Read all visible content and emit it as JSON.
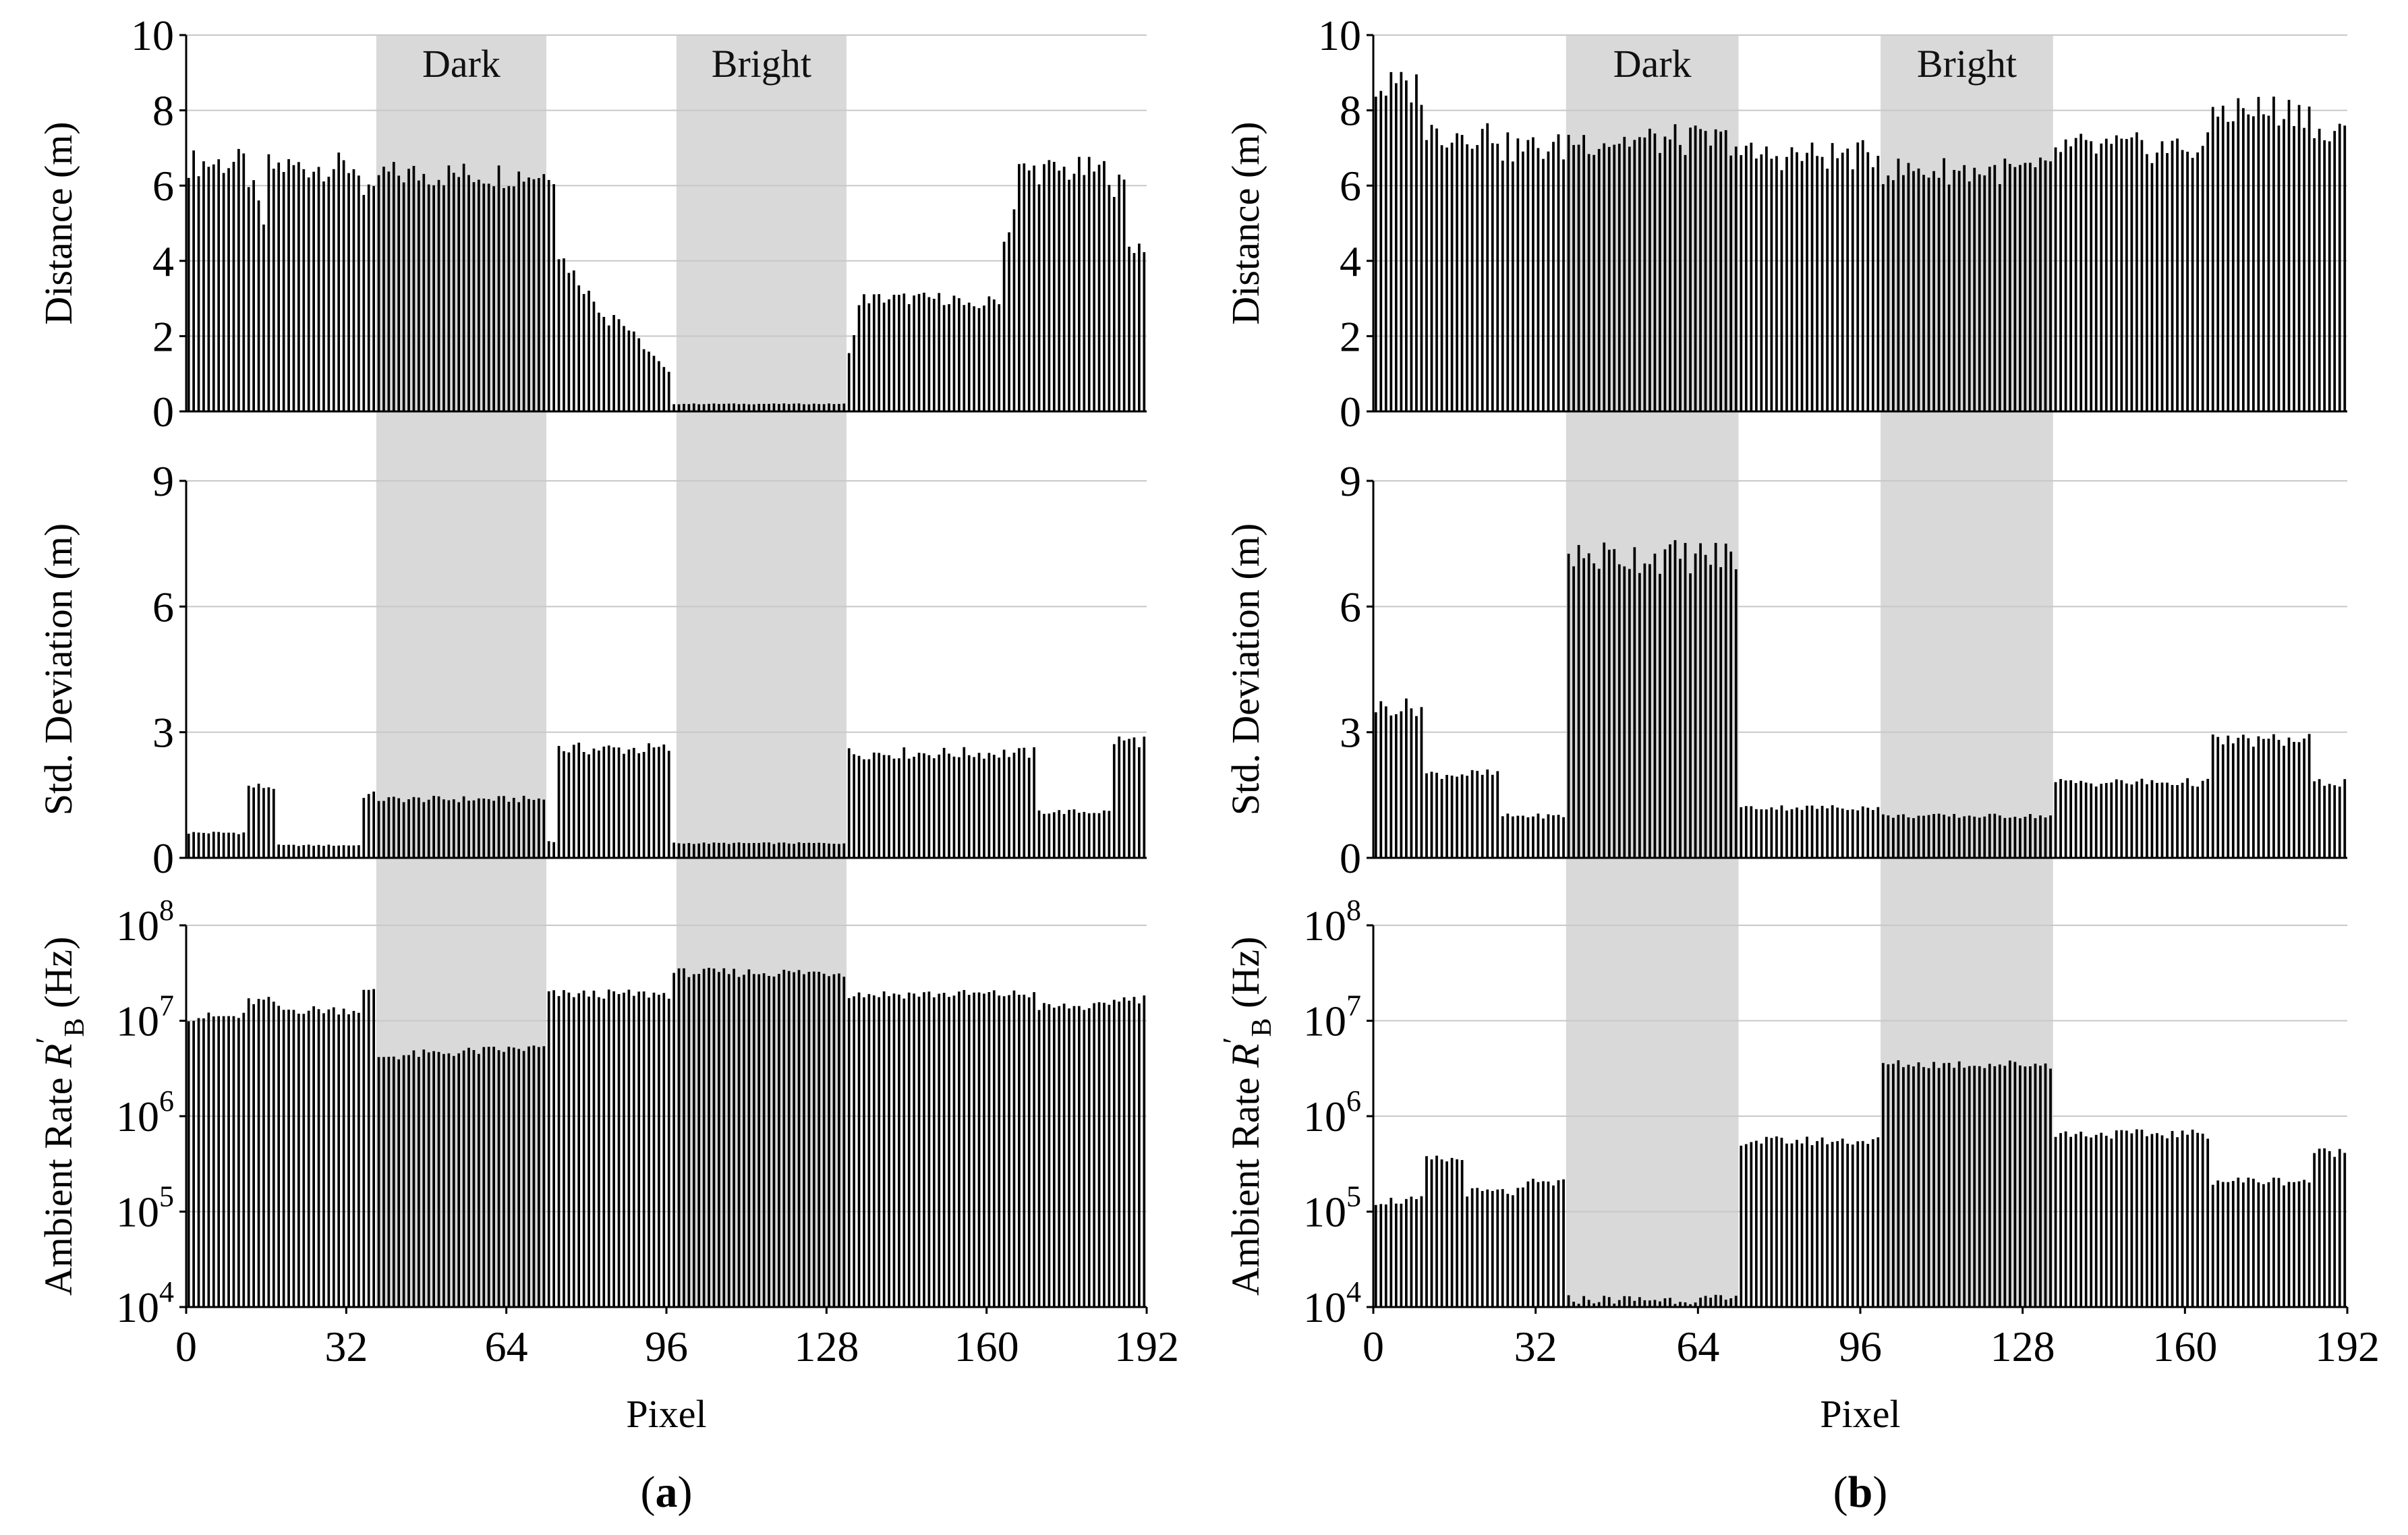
{
  "figure": {
    "x_label": "Pixel",
    "x_ticks": [
      "0",
      "32",
      "64",
      "96",
      "128",
      "160",
      "192"
    ],
    "band_labels": {
      "dark": "Dark",
      "bright": "Bright"
    },
    "panel_labels": [
      {
        "open": "(",
        "letter": "a",
        "close": ")"
      },
      {
        "open": "(",
        "letter": "b",
        "close": ")"
      }
    ],
    "row_labels": {
      "distance": "Distance (m)",
      "std": "Std. Deviation (m)",
      "ambient_prefix": "Ambient Rate ",
      "ambient_symbol": "R",
      "ambient_prime": "′",
      "ambient_sub": "B",
      "ambient_unit": " (Hz)"
    },
    "y_ticks": {
      "distance": [
        "0",
        "2",
        "4",
        "6",
        "8",
        "10"
      ],
      "std": [
        "0",
        "3",
        "6",
        "9"
      ],
      "ambient": [
        {
          "base": "10",
          "exp": "4"
        },
        {
          "base": "10",
          "exp": "5"
        },
        {
          "base": "10",
          "exp": "6"
        },
        {
          "base": "10",
          "exp": "7"
        },
        {
          "base": "10",
          "exp": "8"
        }
      ]
    }
  },
  "chart_data": [
    {
      "type": "bar",
      "panel": "a",
      "x_range": [
        0,
        192
      ],
      "shaded_regions": [
        {
          "label": "Dark",
          "x_start": 38,
          "x_end": 72
        },
        {
          "label": "Bright",
          "x_start": 98,
          "x_end": 132
        }
      ],
      "rows": [
        {
          "name": "distance",
          "ylabel": "Distance (m)",
          "ylim": [
            0,
            10
          ],
          "scale": "linear",
          "segments": [
            {
              "from": 0,
              "to": 12,
              "value": 6.6
            },
            {
              "from": 12,
              "to": 16,
              "value": 6.2,
              "end": 5.0
            },
            {
              "from": 16,
              "to": 35,
              "value": 6.5
            },
            {
              "from": 35,
              "to": 38,
              "value": 5.7
            },
            {
              "from": 38,
              "to": 72,
              "value": 6.3
            },
            {
              "from": 72,
              "to": 74,
              "value": 6.4
            },
            {
              "from": 74,
              "to": 85,
              "value": 4.2,
              "end": 2.4
            },
            {
              "from": 85,
              "to": 97,
              "value": 2.6,
              "end": 1.0
            },
            {
              "from": 97,
              "to": 132,
              "value": 0.2
            },
            {
              "from": 132,
              "to": 135,
              "value": 1.5,
              "end": 2.8
            },
            {
              "from": 135,
              "to": 155,
              "value": 3.0
            },
            {
              "from": 155,
              "to": 163,
              "value": 2.7,
              "end": 3.0
            },
            {
              "from": 163,
              "to": 166,
              "value": 4.5,
              "end": 5.4
            },
            {
              "from": 166,
              "to": 185,
              "value": 6.4
            },
            {
              "from": 185,
              "to": 188,
              "value": 6.0
            },
            {
              "from": 188,
              "to": 192,
              "value": 4.4
            }
          ]
        },
        {
          "name": "std",
          "ylabel": "Std. Deviation (m)",
          "ylim": [
            0,
            9
          ],
          "scale": "linear",
          "segments": [
            {
              "from": 0,
              "to": 12,
              "value": 0.6
            },
            {
              "from": 12,
              "to": 18,
              "value": 1.7
            },
            {
              "from": 18,
              "to": 35,
              "value": 0.3
            },
            {
              "from": 35,
              "to": 38,
              "value": 1.5
            },
            {
              "from": 38,
              "to": 72,
              "value": 1.4
            },
            {
              "from": 72,
              "to": 74,
              "value": 0.4
            },
            {
              "from": 74,
              "to": 97,
              "value": 2.6
            },
            {
              "from": 97,
              "to": 132,
              "value": 0.35
            },
            {
              "from": 132,
              "to": 170,
              "value": 2.5
            },
            {
              "from": 170,
              "to": 185,
              "value": 1.1
            },
            {
              "from": 185,
              "to": 192,
              "value": 2.8
            }
          ]
        },
        {
          "name": "ambient",
          "ylabel": "Ambient Rate R′B (Hz)",
          "ylim": [
            10000,
            100000000
          ],
          "scale": "log",
          "segments": [
            {
              "from": 0,
              "to": 12,
              "value": 11000000
            },
            {
              "from": 12,
              "to": 18,
              "value": 16000000
            },
            {
              "from": 18,
              "to": 35,
              "value": 13000000
            },
            {
              "from": 35,
              "to": 38,
              "value": 20000000
            },
            {
              "from": 38,
              "to": 72,
              "value": 4200000,
              "end": 5200000
            },
            {
              "from": 72,
              "to": 97,
              "value": 19000000
            },
            {
              "from": 97,
              "to": 132,
              "value": 32000000
            },
            {
              "from": 132,
              "to": 170,
              "value": 19000000
            },
            {
              "from": 170,
              "to": 185,
              "value": 14000000
            },
            {
              "from": 185,
              "to": 192,
              "value": 17000000
            }
          ]
        }
      ]
    },
    {
      "type": "bar",
      "panel": "b",
      "x_range": [
        0,
        192
      ],
      "shaded_regions": [
        {
          "label": "Dark",
          "x_start": 38,
          "x_end": 72
        },
        {
          "label": "Bright",
          "x_start": 100,
          "x_end": 134
        }
      ],
      "rows": [
        {
          "name": "distance",
          "ylabel": "Distance (m)",
          "ylim": [
            0,
            10
          ],
          "scale": "linear",
          "segments": [
            {
              "from": 0,
              "to": 10,
              "value": 8.6
            },
            {
              "from": 10,
              "to": 25,
              "value": 7.4
            },
            {
              "from": 25,
              "to": 38,
              "value": 7.0
            },
            {
              "from": 38,
              "to": 72,
              "value": 7.2
            },
            {
              "from": 72,
              "to": 100,
              "value": 6.8
            },
            {
              "from": 100,
              "to": 134,
              "value": 6.4
            },
            {
              "from": 134,
              "to": 165,
              "value": 7.0
            },
            {
              "from": 165,
              "to": 185,
              "value": 8.0
            },
            {
              "from": 185,
              "to": 192,
              "value": 7.3
            }
          ]
        },
        {
          "name": "std",
          "ylabel": "Std. Deviation (m)",
          "ylim": [
            0,
            9
          ],
          "scale": "linear",
          "segments": [
            {
              "from": 0,
              "to": 10,
              "value": 3.6
            },
            {
              "from": 10,
              "to": 25,
              "value": 2.0
            },
            {
              "from": 25,
              "to": 38,
              "value": 1.0
            },
            {
              "from": 38,
              "to": 72,
              "value": 7.2
            },
            {
              "from": 72,
              "to": 100,
              "value": 1.2
            },
            {
              "from": 100,
              "to": 134,
              "value": 1.0
            },
            {
              "from": 134,
              "to": 165,
              "value": 1.8
            },
            {
              "from": 165,
              "to": 185,
              "value": 2.8
            },
            {
              "from": 185,
              "to": 192,
              "value": 1.8
            }
          ]
        },
        {
          "name": "ambient",
          "ylabel": "Ambient Rate R′B (Hz)",
          "ylim": [
            10000,
            100000000
          ],
          "scale": "log",
          "segments": [
            {
              "from": 0,
              "to": 10,
              "value": 130000
            },
            {
              "from": 10,
              "to": 18,
              "value": 350000
            },
            {
              "from": 18,
              "to": 30,
              "value": 160000
            },
            {
              "from": 30,
              "to": 38,
              "value": 200000
            },
            {
              "from": 38,
              "to": 72,
              "value": 12000
            },
            {
              "from": 72,
              "to": 100,
              "value": 550000
            },
            {
              "from": 100,
              "to": 134,
              "value": 3500000
            },
            {
              "from": 134,
              "to": 165,
              "value": 650000
            },
            {
              "from": 165,
              "to": 185,
              "value": 210000
            },
            {
              "from": 185,
              "to": 192,
              "value": 420000
            }
          ]
        }
      ]
    }
  ]
}
